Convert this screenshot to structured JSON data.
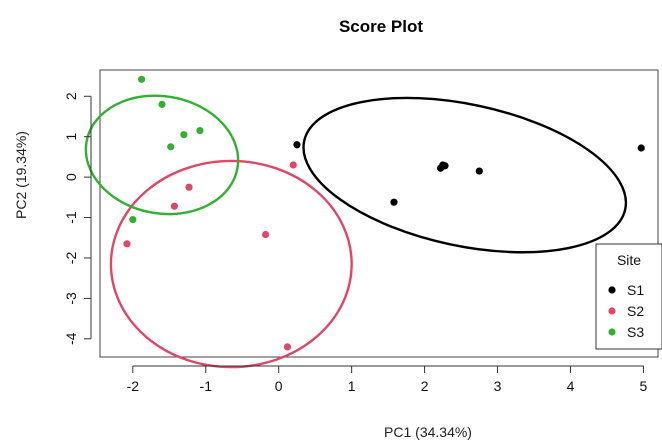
{
  "chart_data": {
    "type": "scatter",
    "title": "Score Plot",
    "xlabel": "PC1 (34.34%)",
    "ylabel": "PC2 (19.34%)",
    "xlim": [
      -2.45,
      5.2
    ],
    "ylim": [
      -4.45,
      2.65
    ],
    "x_ticks": [
      -2,
      -1,
      0,
      1,
      2,
      3,
      4,
      5
    ],
    "y_ticks": [
      2,
      1,
      0,
      -1,
      -2,
      -3,
      -4
    ],
    "grid": false,
    "legend": {
      "title": "Site",
      "placement": "right"
    },
    "series": [
      {
        "name": "S1",
        "color": "#000000",
        "points": [
          [
            0.25,
            0.8
          ],
          [
            1.58,
            -0.62
          ],
          [
            2.22,
            0.22
          ],
          [
            2.25,
            0.3
          ],
          [
            2.28,
            0.28
          ],
          [
            2.75,
            0.15
          ],
          [
            4.97,
            0.72
          ]
        ],
        "ellipse": {
          "center": [
            2.55,
            0.05
          ],
          "radius_x": 2.25,
          "radius_y": 1.75,
          "rotation_deg": 12
        }
      },
      {
        "name": "S2",
        "color": "#df4766",
        "points": [
          [
            -2.08,
            -1.65
          ],
          [
            -1.43,
            -0.72
          ],
          [
            -1.23,
            -0.25
          ],
          [
            -0.18,
            -1.42
          ],
          [
            0.12,
            -4.2
          ],
          [
            0.2,
            0.3
          ]
        ],
        "ellipse": {
          "center": [
            -0.65,
            -2.15
          ],
          "radius_x": 1.65,
          "radius_y": 2.55,
          "rotation_deg": 0
        }
      },
      {
        "name": "S3",
        "color": "#33b033",
        "points": [
          [
            -2.0,
            -1.05
          ],
          [
            -1.88,
            2.42
          ],
          [
            -1.6,
            1.8
          ],
          [
            -1.48,
            0.75
          ],
          [
            -1.3,
            1.05
          ],
          [
            -1.08,
            1.15
          ]
        ],
        "ellipse": {
          "center": [
            -1.6,
            0.55
          ],
          "radius_x": 1.05,
          "radius_y": 1.45,
          "rotation_deg": 10
        }
      }
    ]
  }
}
